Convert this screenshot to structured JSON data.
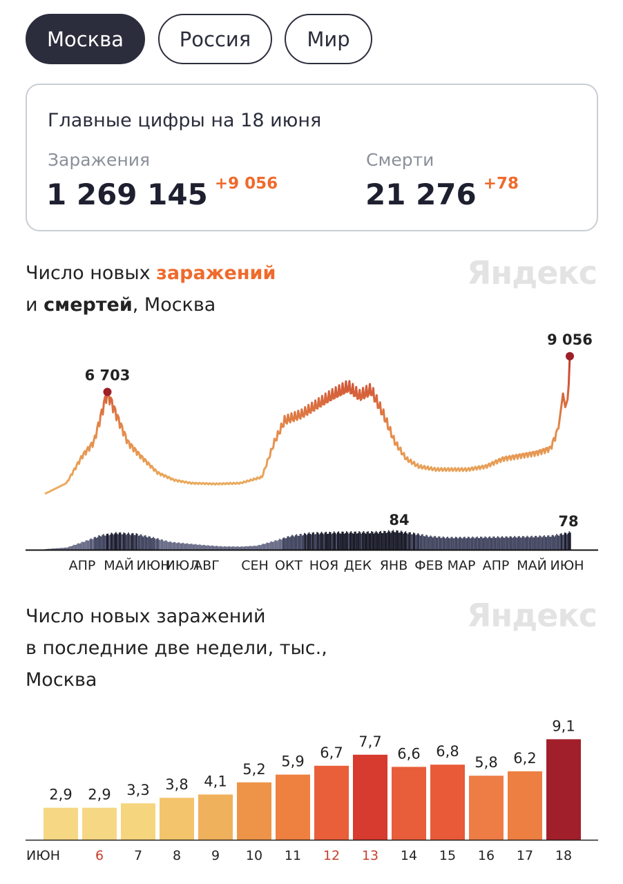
{
  "tabs": [
    {
      "label": "Москва",
      "active": true
    },
    {
      "label": "Россия",
      "active": false
    },
    {
      "label": "Мир",
      "active": false
    }
  ],
  "summary": {
    "title": "Главные цифры на 18 июня",
    "infections_label": "Заражения",
    "infections_value": "1 269 145",
    "infections_delta": "+9 056",
    "deaths_label": "Смерти",
    "deaths_value": "21 276",
    "deaths_delta": "+78"
  },
  "logo": "Яндекс",
  "chart1": {
    "title_prefix": "Число новых ",
    "title_infections": "заражений",
    "title_line2_prefix": "и ",
    "title_deaths": "смертей",
    "title_suffix": ", Москва"
  },
  "chart2": {
    "title_line1": "Число новых заражений",
    "title_line2": "в последние две недели, тыс.,",
    "title_line3": "Москва"
  },
  "colors": {
    "accent": "#ef6a2c",
    "dark": "#2b2d3c",
    "line_low": "#e9b062",
    "line_high": "#c63a2c"
  },
  "chart_data": [
    {
      "type": "line",
      "series": [
        {
          "name": "заражения",
          "x": [
            "2020-03-13",
            "2020-04-01",
            "2020-04-15",
            "2020-04-25",
            "2020-05-07",
            "2020-05-15",
            "2020-05-25",
            "2020-06-05",
            "2020-06-20",
            "2020-07-05",
            "2020-07-20",
            "2020-08-10",
            "2020-09-01",
            "2020-09-20",
            "2020-10-01",
            "2020-10-10",
            "2020-10-25",
            "2020-11-05",
            "2020-11-20",
            "2020-12-05",
            "2020-12-15",
            "2020-12-25",
            "2021-01-05",
            "2021-01-15",
            "2021-01-25",
            "2021-02-05",
            "2021-02-20",
            "2021-03-05",
            "2021-03-20",
            "2021-04-05",
            "2021-04-20",
            "2021-05-05",
            "2021-05-20",
            "2021-06-01",
            "2021-06-08",
            "2021-06-12",
            "2021-06-14",
            "2021-06-16",
            "2021-06-17",
            "2021-06-18"
          ],
          "y": [
            0,
            700,
            2500,
            3400,
            6703,
            5200,
            3400,
            2500,
            1400,
            900,
            700,
            650,
            700,
            1100,
            3400,
            4800,
            5200,
            5700,
            6400,
            7000,
            6400,
            6800,
            5200,
            3400,
            2300,
            1800,
            1600,
            1600,
            1600,
            1800,
            2300,
            2500,
            2700,
            3000,
            4300,
            6600,
            5700,
            6200,
            7200,
            9056
          ]
        },
        {
          "name": "смерти",
          "x": [
            "2020-03-13",
            "2020-04-01",
            "2020-04-15",
            "2020-05-01",
            "2020-05-15",
            "2020-06-01",
            "2020-06-15",
            "2020-07-01",
            "2020-07-15",
            "2020-08-01",
            "2020-08-15",
            "2020-09-01",
            "2020-09-15",
            "2020-10-01",
            "2020-10-15",
            "2020-11-01",
            "2020-11-15",
            "2020-12-01",
            "2020-12-15",
            "2021-01-01",
            "2021-01-15",
            "2021-02-01",
            "2021-02-15",
            "2021-03-01",
            "2021-03-15",
            "2021-04-01",
            "2021-04-15",
            "2021-05-01",
            "2021-05-15",
            "2021-06-01",
            "2021-06-10",
            "2021-06-18"
          ],
          "y": [
            3,
            10,
            35,
            65,
            75,
            70,
            55,
            35,
            28,
            20,
            15,
            14,
            18,
            40,
            62,
            74,
            76,
            78,
            78,
            79,
            84,
            72,
            60,
            55,
            55,
            56,
            57,
            58,
            59,
            62,
            70,
            78
          ]
        }
      ],
      "annotations": [
        {
          "label": "6 703",
          "value": 6703
        },
        {
          "label": "9 056",
          "value": 9056
        },
        {
          "label": "84",
          "value": 84
        },
        {
          "label": "78",
          "value": 78
        }
      ],
      "x_tick_labels": [
        "АПР",
        "МАЙ",
        "ИЮН",
        "ИЮЛ",
        "АВГ",
        "СЕН",
        "ОКТ",
        "НОЯ",
        "ДЕК",
        "ЯНВ",
        "ФЕВ",
        "МАР",
        "АПР",
        "МАЙ",
        "ИЮН"
      ]
    },
    {
      "type": "bar",
      "categories": [
        "ИЮН",
        "6",
        "7",
        "8",
        "9",
        "10",
        "11",
        "12",
        "13",
        "14",
        "15",
        "16",
        "17",
        "18"
      ],
      "values": [
        2.9,
        2.9,
        3.3,
        3.8,
        4.1,
        5.2,
        5.9,
        6.7,
        7.7,
        6.6,
        6.8,
        5.8,
        6.2,
        9.1
      ],
      "value_labels": [
        "2,9",
        "2,9",
        "3,3",
        "3,8",
        "4,1",
        "5,2",
        "5,9",
        "6,7",
        "7,7",
        "6,6",
        "6,8",
        "5,8",
        "6,2",
        "9,1"
      ],
      "highlighted_categories": [
        "6",
        "12",
        "13"
      ],
      "colors": [
        "#f6d784",
        "#f6d784",
        "#f5d57e",
        "#f3c46b",
        "#f0b15c",
        "#ee9449",
        "#ee8040",
        "#e85f39",
        "#d73a2e",
        "#e85d3a",
        "#e85a38",
        "#ed7d45",
        "#ee7f42",
        "#a11f2a"
      ]
    }
  ]
}
